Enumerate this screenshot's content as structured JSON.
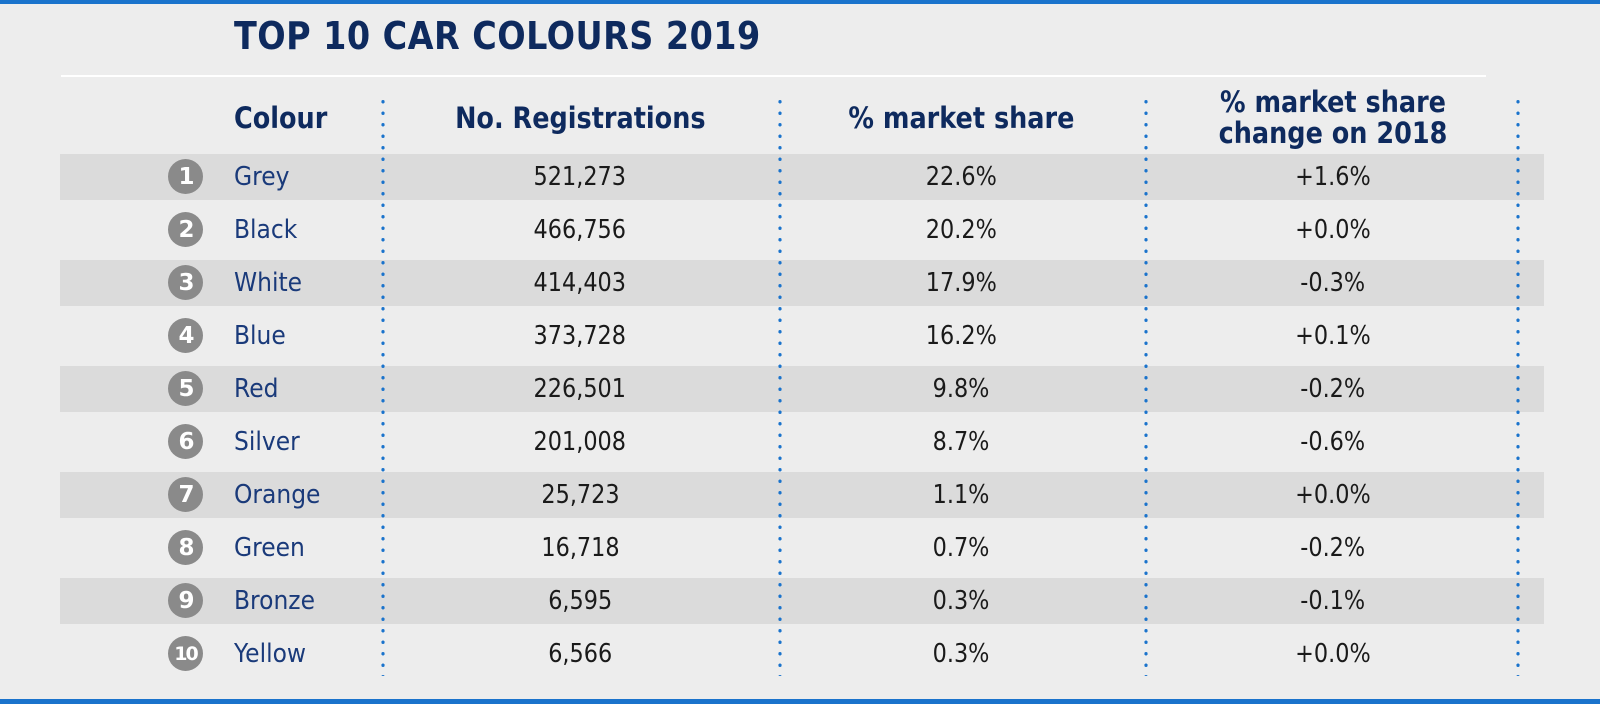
{
  "title": "TOP 10 CAR COLOURS 2019",
  "columns": {
    "colour": "Colour",
    "registrations": "No. Registrations",
    "market_share": "% market share",
    "change": "% market share change on 2018"
  },
  "rows": [
    {
      "rank": "1",
      "colour": "Grey",
      "registrations": "521,273",
      "market_share": "22.6%",
      "change": "+1.6%"
    },
    {
      "rank": "2",
      "colour": "Black",
      "registrations": "466,756",
      "market_share": "20.2%",
      "change": "+0.0%"
    },
    {
      "rank": "3",
      "colour": "White",
      "registrations": "414,403",
      "market_share": "17.9%",
      "change": "-0.3%"
    },
    {
      "rank": "4",
      "colour": "Blue",
      "registrations": "373,728",
      "market_share": "16.2%",
      "change": "+0.1%"
    },
    {
      "rank": "5",
      "colour": "Red",
      "registrations": "226,501",
      "market_share": "9.8%",
      "change": "-0.2%"
    },
    {
      "rank": "6",
      "colour": "Silver",
      "registrations": "201,008",
      "market_share": "8.7%",
      "change": "-0.6%"
    },
    {
      "rank": "7",
      "colour": "Orange",
      "registrations": "25,723",
      "market_share": "1.1%",
      "change": "+0.0%"
    },
    {
      "rank": "8",
      "colour": "Green",
      "registrations": "16,718",
      "market_share": "0.7%",
      "change": "-0.2%"
    },
    {
      "rank": "9",
      "colour": "Bronze",
      "registrations": "6,595",
      "market_share": "0.3%",
      "change": "-0.1%"
    },
    {
      "rank": "10",
      "colour": "Yellow",
      "registrations": "6,566",
      "market_share": "0.3%",
      "change": "+0.0%"
    }
  ],
  "colors": {
    "accent": "#1a73cc",
    "title": "#0e2a5e",
    "colour_text": "#1a3a7a",
    "badge": "#8a8a8a",
    "row_shaded": "#dbdbdb",
    "background": "#ededed"
  }
}
